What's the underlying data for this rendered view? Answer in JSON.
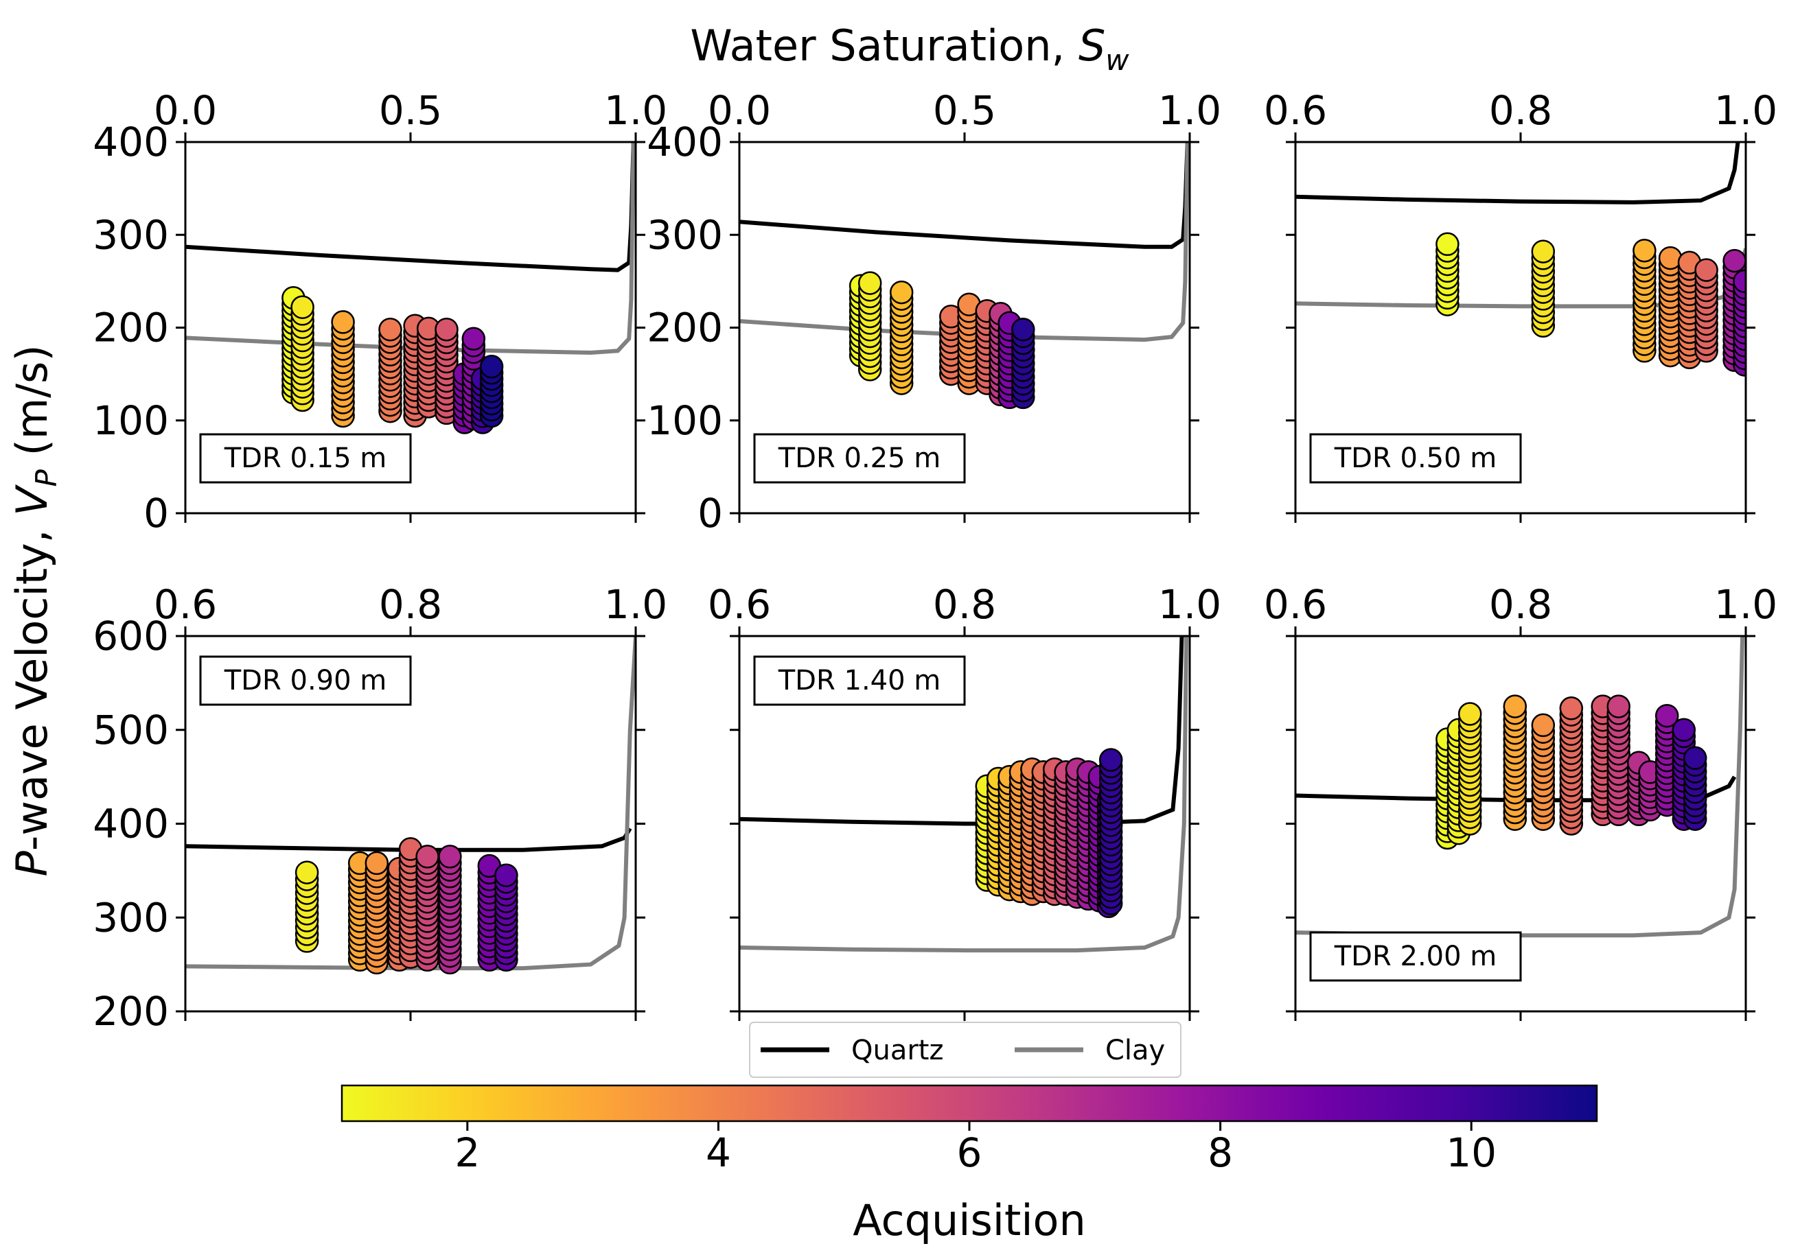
{
  "figure": {
    "top_xlabel_prefix": "Water Saturation, ",
    "top_xlabel_symbol": "S",
    "top_xlabel_sub": "w",
    "ylabel_italic": "P",
    "ylabel_rest": "-wave Velocity, ",
    "ylabel_symbol": "V",
    "ylabel_sub": "P",
    "ylabel_units": " (m/s)"
  },
  "legend": {
    "quartz": "Quartz",
    "clay": "Clay"
  },
  "colorbar": {
    "label": "Acquisition",
    "range": [
      1,
      11
    ],
    "ticks": [
      "2",
      "4",
      "6",
      "8",
      "10"
    ],
    "tick_values": [
      2,
      4,
      6,
      8,
      10
    ],
    "colormap": "plasma",
    "stops": [
      "#f0f921",
      "#fdca26",
      "#fb9f3a",
      "#ed7953",
      "#d8576b",
      "#bd3786",
      "#9c179e",
      "#7201a8",
      "#46039f",
      "#0d0887"
    ]
  },
  "colors": {
    "quartz": "#000000",
    "clay": "#808080",
    "marker_edge": "#000000"
  },
  "chart_data": [
    {
      "type": "scatter",
      "label": "TDR 0.15 m",
      "xlim": [
        0.0,
        1.0
      ],
      "ylim": [
        0,
        400
      ],
      "xticks": [
        "0.0",
        "0.5",
        "1.0"
      ],
      "xtick_values": [
        0.0,
        0.5,
        1.0
      ],
      "yticks": [
        "0",
        "100",
        "200",
        "300",
        "400"
      ],
      "ytick_values": [
        0,
        100,
        200,
        300,
        400
      ],
      "quartz_curve": {
        "x": [
          0.0,
          0.3,
          0.6,
          0.9,
          0.96,
          0.985,
          0.99,
          0.995
        ],
        "y": [
          287,
          278,
          270,
          263,
          262,
          270,
          310,
          400
        ]
      },
      "clay_curve": {
        "x": [
          0.0,
          0.3,
          0.6,
          0.9,
          0.96,
          0.985,
          0.99,
          0.995
        ],
        "y": [
          189,
          182,
          176,
          173,
          175,
          188,
          230,
          400
        ]
      },
      "clusters": [
        {
          "sw": 0.24,
          "acq": 1,
          "vmin": 130,
          "vmax": 232
        },
        {
          "sw": 0.26,
          "acq": 1.4,
          "vmin": 122,
          "vmax": 222
        },
        {
          "sw": 0.35,
          "acq": 3,
          "vmin": 105,
          "vmax": 206
        },
        {
          "sw": 0.455,
          "acq": 4.3,
          "vmin": 110,
          "vmax": 198
        },
        {
          "sw": 0.51,
          "acq": 4.8,
          "vmin": 105,
          "vmax": 202
        },
        {
          "sw": 0.54,
          "acq": 5,
          "vmin": 115,
          "vmax": 199
        },
        {
          "sw": 0.58,
          "acq": 5.5,
          "vmin": 108,
          "vmax": 198
        },
        {
          "sw": 0.62,
          "acq": 8.5,
          "vmin": 98,
          "vmax": 150
        },
        {
          "sw": 0.64,
          "acq": 8.2,
          "vmin": 102,
          "vmax": 188
        },
        {
          "sw": 0.66,
          "acq": 10,
          "vmin": 98,
          "vmax": 145
        },
        {
          "sw": 0.68,
          "acq": 10.8,
          "vmin": 105,
          "vmax": 158
        }
      ]
    },
    {
      "type": "scatter",
      "label": "TDR 0.25 m",
      "xlim": [
        0.0,
        1.0
      ],
      "ylim": [
        0,
        400
      ],
      "xticks": [
        "0.0",
        "0.5",
        "1.0"
      ],
      "xtick_values": [
        0.0,
        0.5,
        1.0
      ],
      "yticks": [
        "0",
        "100",
        "200",
        "300",
        "400"
      ],
      "ytick_values": [
        0,
        100,
        200,
        300,
        400
      ],
      "quartz_curve": {
        "x": [
          0.0,
          0.3,
          0.6,
          0.9,
          0.96,
          0.985,
          0.99,
          0.995
        ],
        "y": [
          314,
          303,
          294,
          287,
          287,
          295,
          330,
          400
        ]
      },
      "clay_curve": {
        "x": [
          0.0,
          0.3,
          0.6,
          0.9,
          0.96,
          0.985,
          0.99,
          0.995
        ],
        "y": [
          207,
          197,
          190,
          187,
          190,
          205,
          250,
          400
        ]
      },
      "clusters": [
        {
          "sw": 0.27,
          "acq": 1,
          "vmin": 170,
          "vmax": 245
        },
        {
          "sw": 0.29,
          "acq": 1.3,
          "vmin": 155,
          "vmax": 248
        },
        {
          "sw": 0.36,
          "acq": 2.5,
          "vmin": 140,
          "vmax": 238
        },
        {
          "sw": 0.47,
          "acq": 4.5,
          "vmin": 150,
          "vmax": 212
        },
        {
          "sw": 0.51,
          "acq": 3.8,
          "vmin": 140,
          "vmax": 225
        },
        {
          "sw": 0.55,
          "acq": 5,
          "vmin": 140,
          "vmax": 218
        },
        {
          "sw": 0.58,
          "acq": 6.5,
          "vmin": 128,
          "vmax": 215
        },
        {
          "sw": 0.6,
          "acq": 8.5,
          "vmin": 125,
          "vmax": 205
        },
        {
          "sw": 0.63,
          "acq": 10.5,
          "vmin": 125,
          "vmax": 198
        }
      ]
    },
    {
      "type": "scatter",
      "label": "TDR 0.50 m",
      "xlim": [
        0.6,
        1.0
      ],
      "ylim": [
        0,
        400
      ],
      "xticks": [
        "0.6",
        "0.8",
        "1.0"
      ],
      "xtick_values": [
        0.6,
        0.8,
        1.0
      ],
      "yticks": [],
      "ytick_values": [
        0,
        100,
        200,
        300,
        400
      ],
      "quartz_curve": {
        "x": [
          0.6,
          0.7,
          0.8,
          0.9,
          0.96,
          0.985,
          0.99,
          0.993
        ],
        "y": [
          341,
          338,
          336,
          335,
          337,
          350,
          370,
          400
        ]
      },
      "clay_curve": {
        "x": [
          0.6,
          0.7,
          0.8,
          0.9,
          0.96,
          0.985,
          0.995,
          1.0
        ],
        "y": [
          226,
          224,
          223,
          223,
          226,
          235,
          260,
          285
        ]
      },
      "clusters": [
        {
          "sw": 0.735,
          "acq": 1,
          "vmin": 225,
          "vmax": 290
        },
        {
          "sw": 0.82,
          "acq": 1.5,
          "vmin": 202,
          "vmax": 282
        },
        {
          "sw": 0.91,
          "acq": 2.7,
          "vmin": 175,
          "vmax": 283
        },
        {
          "sw": 0.933,
          "acq": 3.5,
          "vmin": 170,
          "vmax": 275
        },
        {
          "sw": 0.95,
          "acq": 4.3,
          "vmin": 168,
          "vmax": 270
        },
        {
          "sw": 0.965,
          "acq": 5,
          "vmin": 175,
          "vmax": 262
        },
        {
          "sw": 0.99,
          "acq": 7.5,
          "vmin": 165,
          "vmax": 272
        },
        {
          "sw": 0.999,
          "acq": 8.5,
          "vmin": 160,
          "vmax": 250
        }
      ]
    },
    {
      "type": "scatter",
      "label": "TDR 0.90 m",
      "xlim": [
        0.6,
        1.0
      ],
      "ylim": [
        200,
        600
      ],
      "xticks": [
        "0.6",
        "0.8",
        "1.0"
      ],
      "xtick_values": [
        0.6,
        0.8,
        1.0
      ],
      "yticks": [
        "200",
        "300",
        "400",
        "500",
        "600"
      ],
      "ytick_values": [
        200,
        300,
        400,
        500,
        600
      ],
      "quartz_curve": {
        "x": [
          0.6,
          0.7,
          0.8,
          0.9,
          0.97,
          0.99,
          0.995
        ],
        "y": [
          376,
          374,
          372,
          372,
          376,
          385,
          395
        ]
      },
      "clay_curve": {
        "x": [
          0.6,
          0.7,
          0.8,
          0.9,
          0.96,
          0.985,
          0.99,
          0.995,
          1.0
        ],
        "y": [
          248,
          247,
          246,
          246,
          250,
          270,
          300,
          500,
          600
        ]
      },
      "clusters": [
        {
          "sw": 0.708,
          "acq": 1.3,
          "vmin": 275,
          "vmax": 348
        },
        {
          "sw": 0.755,
          "acq": 3,
          "vmin": 255,
          "vmax": 358
        },
        {
          "sw": 0.77,
          "acq": 3.5,
          "vmin": 252,
          "vmax": 358
        },
        {
          "sw": 0.79,
          "acq": 4.5,
          "vmin": 255,
          "vmax": 352
        },
        {
          "sw": 0.8,
          "acq": 5,
          "vmin": 258,
          "vmax": 373
        },
        {
          "sw": 0.815,
          "acq": 6,
          "vmin": 255,
          "vmax": 365
        },
        {
          "sw": 0.835,
          "acq": 7,
          "vmin": 252,
          "vmax": 365
        },
        {
          "sw": 0.87,
          "acq": 8.6,
          "vmin": 255,
          "vmax": 355
        },
        {
          "sw": 0.885,
          "acq": 9.2,
          "vmin": 255,
          "vmax": 345
        }
      ]
    },
    {
      "type": "scatter",
      "label": "TDR 1.40 m",
      "xlim": [
        0.6,
        1.0
      ],
      "ylim": [
        200,
        600
      ],
      "xticks": [
        "0.6",
        "0.8",
        "1.0"
      ],
      "xtick_values": [
        0.6,
        0.8,
        1.0
      ],
      "yticks": [],
      "ytick_values": [
        200,
        300,
        400,
        500,
        600
      ],
      "quartz_curve": {
        "x": [
          0.6,
          0.7,
          0.8,
          0.9,
          0.96,
          0.985,
          0.99,
          0.993
        ],
        "y": [
          405,
          402,
          400,
          400,
          403,
          415,
          480,
          600
        ]
      },
      "clay_curve": {
        "x": [
          0.6,
          0.7,
          0.8,
          0.9,
          0.96,
          0.985,
          0.99,
          0.995,
          0.997
        ],
        "y": [
          268,
          266,
          265,
          265,
          268,
          280,
          300,
          400,
          600
        ]
      },
      "clusters": [
        {
          "sw": 0.82,
          "acq": 1.2,
          "vmin": 340,
          "vmax": 440
        },
        {
          "sw": 0.83,
          "acq": 2,
          "vmin": 335,
          "vmax": 448
        },
        {
          "sw": 0.84,
          "acq": 2.7,
          "vmin": 330,
          "vmax": 450
        },
        {
          "sw": 0.85,
          "acq": 3.3,
          "vmin": 328,
          "vmax": 455
        },
        {
          "sw": 0.86,
          "acq": 4,
          "vmin": 325,
          "vmax": 458
        },
        {
          "sw": 0.87,
          "acq": 4.6,
          "vmin": 328,
          "vmax": 455
        },
        {
          "sw": 0.88,
          "acq": 5.3,
          "vmin": 325,
          "vmax": 458
        },
        {
          "sw": 0.89,
          "acq": 6,
          "vmin": 325,
          "vmax": 455
        },
        {
          "sw": 0.9,
          "acq": 6.8,
          "vmin": 322,
          "vmax": 458
        },
        {
          "sw": 0.91,
          "acq": 7.5,
          "vmin": 320,
          "vmax": 455
        },
        {
          "sw": 0.92,
          "acq": 8.3,
          "vmin": 318,
          "vmax": 450
        },
        {
          "sw": 0.928,
          "acq": 9.5,
          "vmin": 312,
          "vmax": 425
        },
        {
          "sw": 0.93,
          "acq": 10.3,
          "vmin": 315,
          "vmax": 468
        }
      ]
    },
    {
      "type": "scatter",
      "label": "TDR 2.00 m",
      "xlim": [
        0.6,
        1.0
      ],
      "ylim": [
        200,
        600
      ],
      "xticks": [
        "0.6",
        "0.8",
        "1.0"
      ],
      "xtick_values": [
        0.6,
        0.8,
        1.0
      ],
      "yticks": [],
      "ytick_values": [
        200,
        300,
        400,
        500,
        600
      ],
      "quartz_curve": {
        "x": [
          0.6,
          0.7,
          0.8,
          0.9,
          0.96,
          0.985,
          0.99
        ],
        "y": [
          430,
          427,
          425,
          425,
          427,
          440,
          450
        ]
      },
      "clay_curve": {
        "x": [
          0.6,
          0.7,
          0.8,
          0.9,
          0.96,
          0.985,
          0.99,
          0.995,
          0.997
        ],
        "y": [
          284,
          282,
          281,
          281,
          284,
          300,
          330,
          500,
          600
        ]
      },
      "clusters": [
        {
          "sw": 0.735,
          "acq": 1,
          "vmin": 385,
          "vmax": 490
        },
        {
          "sw": 0.745,
          "acq": 1.2,
          "vmin": 390,
          "vmax": 500
        },
        {
          "sw": 0.755,
          "acq": 1.6,
          "vmin": 400,
          "vmax": 517
        },
        {
          "sw": 0.795,
          "acq": 3,
          "vmin": 405,
          "vmax": 525
        },
        {
          "sw": 0.82,
          "acq": 3.6,
          "vmin": 405,
          "vmax": 505
        },
        {
          "sw": 0.845,
          "acq": 4.8,
          "vmin": 400,
          "vmax": 523
        },
        {
          "sw": 0.873,
          "acq": 5.5,
          "vmin": 410,
          "vmax": 525
        },
        {
          "sw": 0.887,
          "acq": 6.2,
          "vmin": 410,
          "vmax": 525
        },
        {
          "sw": 0.905,
          "acq": 6.8,
          "vmin": 410,
          "vmax": 465
        },
        {
          "sw": 0.915,
          "acq": 7.2,
          "vmin": 415,
          "vmax": 455
        },
        {
          "sw": 0.93,
          "acq": 8,
          "vmin": 420,
          "vmax": 515
        },
        {
          "sw": 0.945,
          "acq": 9.5,
          "vmin": 405,
          "vmax": 500
        },
        {
          "sw": 0.955,
          "acq": 10.3,
          "vmin": 405,
          "vmax": 470
        }
      ]
    }
  ]
}
